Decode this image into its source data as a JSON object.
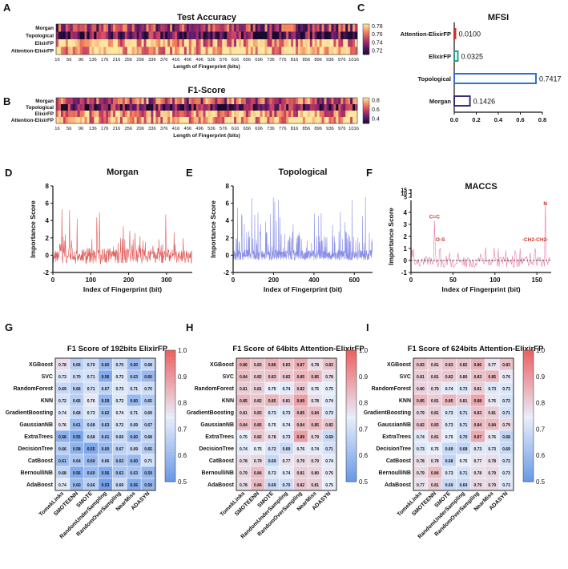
{
  "panel_letters": [
    "A",
    "B",
    "C",
    "D",
    "E",
    "F",
    "G",
    "H",
    "I"
  ],
  "chart_data": [
    {
      "id": "A",
      "type": "heatmap",
      "title": "Test Accuracy",
      "xlabel": "Length of Fingerprint (bits)",
      "rows": [
        "Morgan",
        "Topological",
        "ElixirFP",
        "Attention-ElixirFP"
      ],
      "x_start": 16,
      "x_step": 8,
      "x_count": 127,
      "x_ticks": [
        16,
        56,
        96,
        136,
        176,
        216,
        256,
        296,
        336,
        376,
        416,
        456,
        496,
        536,
        576,
        616,
        656,
        696,
        736,
        776,
        816,
        856,
        896,
        936,
        976,
        1016
      ],
      "row_means": [
        0.745,
        0.728,
        0.77,
        0.777
      ],
      "colorbar": {
        "min": 0.71,
        "max": 0.785,
        "ticks": [
          "0.78",
          "0.76",
          "0.74",
          "0.72"
        ],
        "tick_values": [
          0.78,
          0.76,
          0.74,
          0.72
        ]
      }
    },
    {
      "id": "B",
      "type": "heatmap",
      "title": "F1-Score",
      "xlabel": "Length of Fingerprint (bits)",
      "rows": [
        "Morgan",
        "Topological",
        "ElixirFP",
        "Attention-ElixirFP"
      ],
      "x_start": 16,
      "x_step": 8,
      "x_count": 127,
      "x_ticks": [
        16,
        56,
        96,
        136,
        176,
        216,
        256,
        296,
        336,
        376,
        416,
        456,
        496,
        536,
        576,
        616,
        656,
        696,
        736,
        776,
        816,
        856,
        896,
        936,
        976,
        1016
      ],
      "row_means": [
        0.62,
        0.45,
        0.74,
        0.78
      ],
      "colorbar": {
        "min": 0.3,
        "max": 0.85,
        "ticks": [
          "0.8",
          "0.6",
          "0.4"
        ],
        "tick_values": [
          0.8,
          0.6,
          0.4
        ]
      }
    },
    {
      "id": "C",
      "type": "bar",
      "title": "MFSI",
      "orientation": "horizontal",
      "categories": [
        "Attention-ElixirFP",
        "ElixirFP",
        "Topological",
        "Morgan"
      ],
      "values": [
        0.01,
        0.0325,
        0.7417,
        0.1426
      ],
      "value_labels": [
        "0.0100",
        "0.0325",
        "0.7417",
        "0.1426"
      ],
      "bar_colors": [
        "#c0392b",
        "#2a9d8f",
        "#2f6fd6",
        "#3b2d7a"
      ],
      "xlim": [
        0,
        0.8
      ],
      "x_ticks": [
        "0.0",
        "0.2",
        "0.4",
        "0.6",
        "0.8"
      ]
    },
    {
      "id": "D",
      "type": "line",
      "title": "Morgan",
      "xlabel": "Index of Fingerprint (bit)",
      "ylabel": "Importance Score",
      "xlim": [
        0,
        368
      ],
      "ylim": [
        -2,
        8
      ],
      "x_ticks": [
        0,
        100,
        200,
        300
      ],
      "y_ticks": [
        -2,
        0,
        2,
        4,
        6,
        8
      ],
      "color": "#e05a5a",
      "n_points": 368
    },
    {
      "id": "E",
      "type": "line",
      "title": "Topological",
      "xlabel": "Index of Fingerprint (bit)",
      "ylabel": "Importance Score",
      "xlim": [
        0,
        690
      ],
      "ylim": [
        -2,
        8
      ],
      "x_ticks": [
        0,
        200,
        400,
        600
      ],
      "y_ticks": [
        -2,
        0,
        2,
        4,
        6,
        8
      ],
      "color": "#8a8fe6",
      "n_points": 690
    },
    {
      "id": "F",
      "type": "line",
      "title": "MACCS",
      "xlabel": "Index of Fingerprint (bit)",
      "ylabel": "Importance Score",
      "xlim": [
        0,
        167
      ],
      "ylim": [
        -1,
        5
      ],
      "x_ticks": [
        0,
        50,
        100,
        150
      ],
      "y_ticks_lower": [
        -1,
        0,
        1,
        2,
        3,
        4
      ],
      "y_ticks_upper": [
        5,
        10,
        15
      ],
      "color": "#e87aa8",
      "n_points": 167,
      "annotations": [
        {
          "text": "C=C",
          "x": 28,
          "y": 3.5
        },
        {
          "text": "O-S",
          "x": 35,
          "y": 1.6
        },
        {
          "text": "-CH2-CH2-",
          "x": 148,
          "y": 1.6
        },
        {
          "text": "N",
          "x": 160,
          "y": 4.6
        }
      ]
    },
    {
      "id": "G",
      "type": "table",
      "title": "F1 Score of 192bits ElixirFP",
      "rows": [
        "XGBoost",
        "SVC",
        "RandomForest",
        "KNN",
        "GradientBoosting",
        "GaussianNB",
        "ExtraTrees",
        "DecisionTree",
        "CatBoost",
        "BernoulliNB",
        "AdaBoost"
      ],
      "cols": [
        "TomekLinks",
        "SMOTEENN",
        "SMOTE",
        "RandomUnderSampling",
        "RandomOverSampling",
        "NearMiss",
        "ADASYN"
      ],
      "values": [
        [
          0.78,
          0.66,
          0.7,
          0.6,
          0.7,
          0.6,
          0.68
        ],
        [
          0.73,
          0.7,
          0.71,
          0.56,
          0.73,
          0.63,
          0.6
        ],
        [
          0.69,
          0.66,
          0.71,
          0.67,
          0.73,
          0.71,
          0.7
        ],
        [
          0.72,
          0.66,
          0.76,
          0.59,
          0.73,
          0.6,
          0.65
        ],
        [
          0.74,
          0.68,
          0.73,
          0.62,
          0.74,
          0.71,
          0.69
        ],
        [
          0.76,
          0.61,
          0.68,
          0.63,
          0.72,
          0.69,
          0.67
        ],
        [
          0.58,
          0.55,
          0.68,
          0.61,
          0.69,
          0.6,
          0.68
        ],
        [
          0.66,
          0.58,
          0.55,
          0.6,
          0.67,
          0.69,
          0.65
        ],
        [
          0.61,
          0.64,
          0.6,
          0.66,
          0.63,
          0.6,
          0.71
        ],
        [
          0.68,
          0.56,
          0.6,
          0.56,
          0.63,
          0.63,
          0.59
        ],
        [
          0.74,
          0.6,
          0.66,
          0.53,
          0.69,
          0.56,
          0.59
        ]
      ],
      "colorbar": {
        "min": 0.5,
        "max": 1.0,
        "ticks": [
          "1.0",
          "0.9",
          "0.8",
          "0.7",
          "0.6",
          "0.5"
        ]
      }
    },
    {
      "id": "H",
      "type": "table",
      "title": "F1 Score of 64bits Attention-ElixirFP",
      "rows": [
        "XGBoost",
        "SVC",
        "RandomForest",
        "KNN",
        "GradientBoosting",
        "GaussianNB",
        "ExtraTrees",
        "DecisionTree",
        "CatBoost",
        "BernoulliNB",
        "AdaBoost"
      ],
      "cols": [
        "TomekLinks",
        "SMOTEENN",
        "SMOTE",
        "RandomUnderSampling",
        "RandomOverSampling",
        "NearMiss",
        "ADASYN"
      ],
      "values": [
        [
          0.86,
          0.83,
          0.86,
          0.83,
          0.87,
          0.78,
          0.83
        ],
        [
          0.84,
          0.82,
          0.83,
          0.82,
          0.85,
          0.85,
          0.78
        ],
        [
          0.81,
          0.81,
          0.75,
          0.74,
          0.82,
          0.75,
          0.75
        ],
        [
          0.85,
          0.82,
          0.85,
          0.81,
          0.89,
          0.78,
          0.74
        ],
        [
          0.81,
          0.83,
          0.73,
          0.73,
          0.85,
          0.84,
          0.73
        ],
        [
          0.84,
          0.85,
          0.75,
          0.74,
          0.84,
          0.85,
          0.82
        ],
        [
          0.75,
          0.82,
          0.78,
          0.73,
          0.89,
          0.79,
          0.69
        ],
        [
          0.74,
          0.75,
          0.72,
          0.69,
          0.76,
          0.74,
          0.71
        ],
        [
          0.78,
          0.79,
          0.69,
          0.77,
          0.79,
          0.79,
          0.74
        ],
        [
          0.79,
          0.84,
          0.73,
          0.74,
          0.81,
          0.8,
          0.76
        ],
        [
          0.78,
          0.84,
          0.69,
          0.7,
          0.82,
          0.81,
          0.75
        ]
      ],
      "colorbar": {
        "min": 0.5,
        "max": 1.0,
        "ticks": [
          "1.0",
          "0.9",
          "0.8",
          "0.7",
          "0.6",
          "0.5"
        ]
      }
    },
    {
      "id": "I",
      "type": "table",
      "title": "F1 Score of 624bits Attention-ElixirFP",
      "rows": [
        "XGBoost",
        "SVC",
        "RandomForest",
        "KNN",
        "GradientBoosting",
        "GaussianNB",
        "ExtraTrees",
        "DecisionTree",
        "CatBoost",
        "BernoulliNB",
        "AdaBoost"
      ],
      "cols": [
        "TomekLinks",
        "SMOTEENN",
        "SMOTE",
        "RandomUnderSampling",
        "RandomOverSampling",
        "NearMiss",
        "ADASYN"
      ],
      "values": [
        [
          0.83,
          0.81,
          0.83,
          0.82,
          0.86,
          0.77,
          0.83
        ],
        [
          0.81,
          0.81,
          0.82,
          0.8,
          0.83,
          0.85,
          0.76
        ],
        [
          0.8,
          0.79,
          0.74,
          0.73,
          0.81,
          0.73,
          0.73
        ],
        [
          0.85,
          0.81,
          0.85,
          0.81,
          0.88,
          0.76,
          0.72
        ],
        [
          0.79,
          0.81,
          0.73,
          0.71,
          0.83,
          0.81,
          0.71
        ],
        [
          0.82,
          0.83,
          0.73,
          0.71,
          0.84,
          0.84,
          0.79
        ],
        [
          0.74,
          0.81,
          0.75,
          0.7,
          0.87,
          0.76,
          0.68
        ],
        [
          0.73,
          0.75,
          0.69,
          0.68,
          0.73,
          0.73,
          0.69
        ],
        [
          0.78,
          0.78,
          0.68,
          0.75,
          0.77,
          0.78,
          0.72
        ],
        [
          0.79,
          0.84,
          0.73,
          0.71,
          0.78,
          0.79,
          0.73
        ],
        [
          0.77,
          0.81,
          0.69,
          0.69,
          0.79,
          0.79,
          0.73
        ]
      ],
      "colorbar": {
        "min": 0.5,
        "max": 1.0,
        "ticks": [
          "1.0",
          "0.9",
          "0.8",
          "0.7",
          "0.6",
          "0.5"
        ]
      }
    }
  ]
}
